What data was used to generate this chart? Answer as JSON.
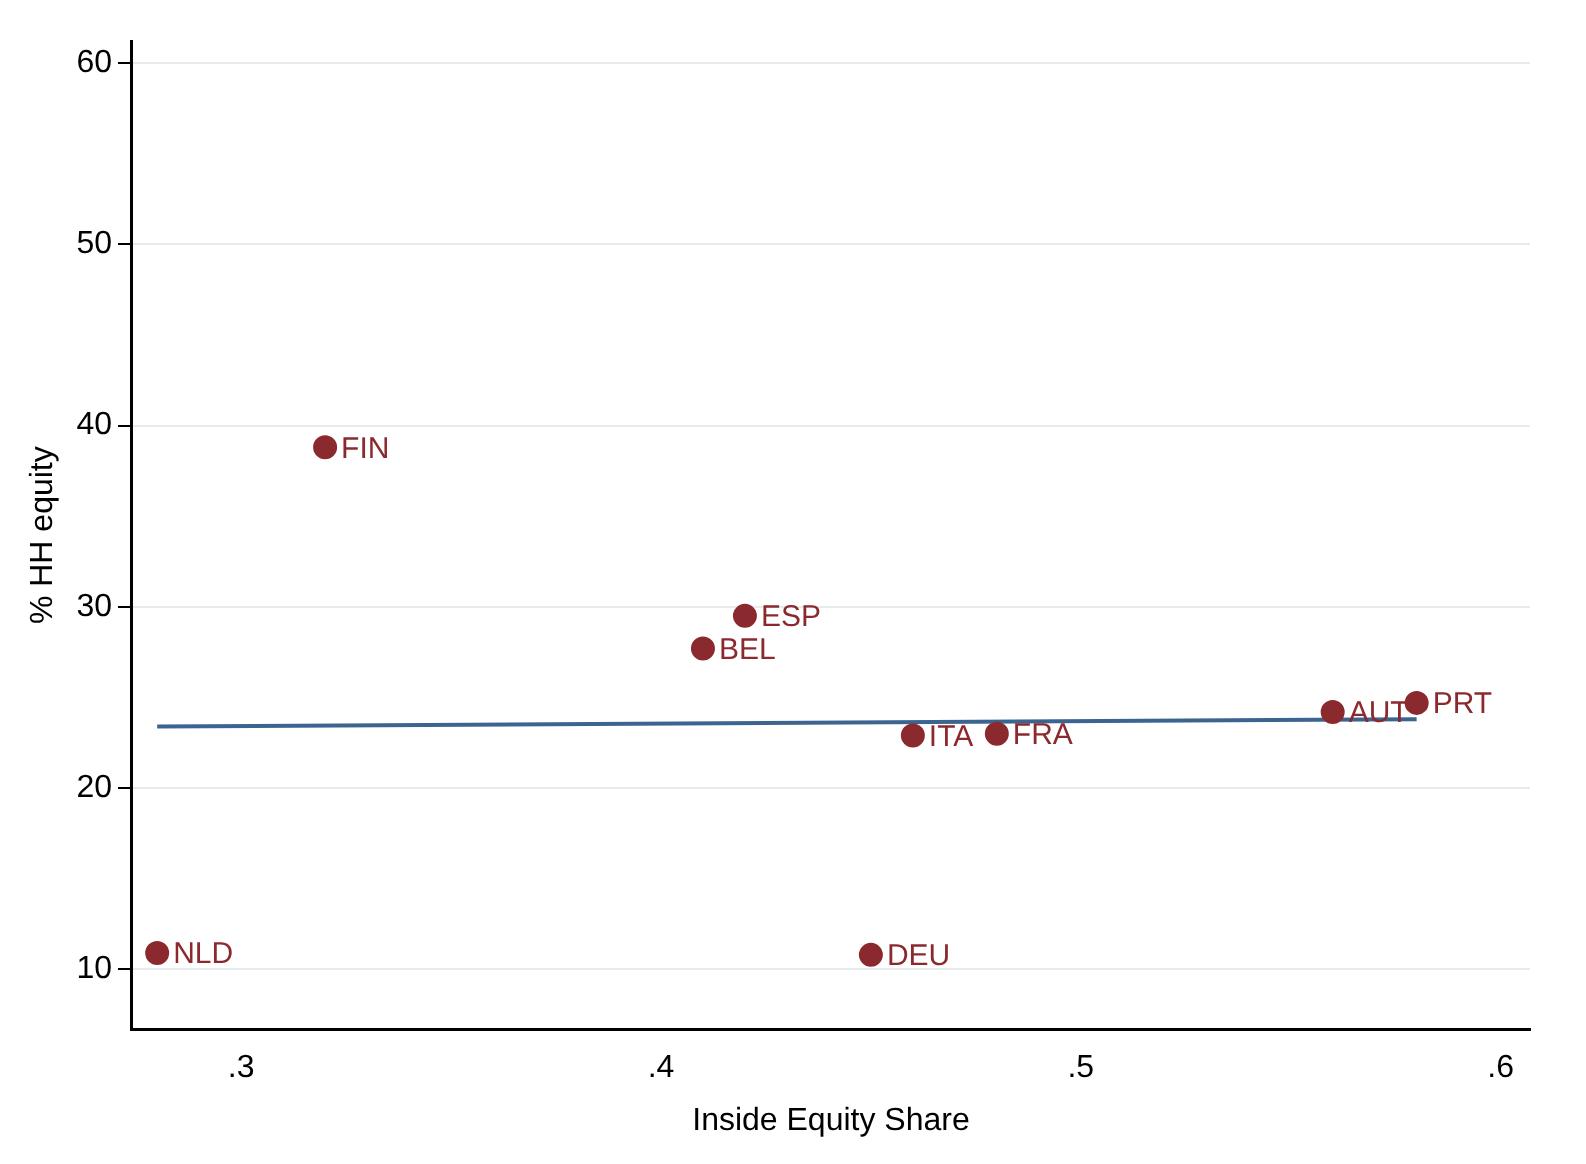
{
  "chart_data": {
    "type": "scatter",
    "xlabel": "Inside Equity Share",
    "ylabel": "% HH equity",
    "series": [
      {
        "marker": "circle",
        "color": "#8b2a2e",
        "x": [
          0.28,
          0.32,
          0.42,
          0.41,
          0.46,
          0.48,
          0.45,
          0.56,
          0.58
        ],
        "values": [
          10.9,
          38.8,
          29.5,
          27.7,
          22.9,
          23.0,
          10.8,
          24.2,
          24.7
        ]
      },
      {
        "type": "line",
        "color": "#3b6491",
        "x": [
          0.28,
          0.58
        ],
        "values": [
          23.4,
          23.8
        ]
      }
    ],
    "annotations": [
      {
        "text": "NLD",
        "x": 0.28,
        "y": 10.9
      },
      {
        "text": "FIN",
        "x": 0.32,
        "y": 38.8
      },
      {
        "text": "ESP",
        "x": 0.42,
        "y": 29.5
      },
      {
        "text": "BEL",
        "x": 0.41,
        "y": 27.7
      },
      {
        "text": "ITA",
        "x": 0.46,
        "y": 22.9
      },
      {
        "text": "FRA",
        "x": 0.48,
        "y": 23.0
      },
      {
        "text": "DEU",
        "x": 0.45,
        "y": 10.8
      },
      {
        "text": "AUT",
        "x": 0.56,
        "y": 24.2
      },
      {
        "text": "PRT",
        "x": 0.58,
        "y": 24.7
      }
    ],
    "xlim": [
      0.274,
      0.607
    ],
    "ylim": [
      6.7,
      61.2
    ],
    "xticks": [
      {
        "value": 0.3,
        "label": ".3"
      },
      {
        "value": 0.4,
        "label": ".4"
      },
      {
        "value": 0.5,
        "label": ".5"
      },
      {
        "value": 0.6,
        "label": ".6"
      }
    ],
    "yticks": [
      10,
      20,
      30,
      40,
      50,
      60
    ],
    "grid": "y",
    "legend": false
  }
}
